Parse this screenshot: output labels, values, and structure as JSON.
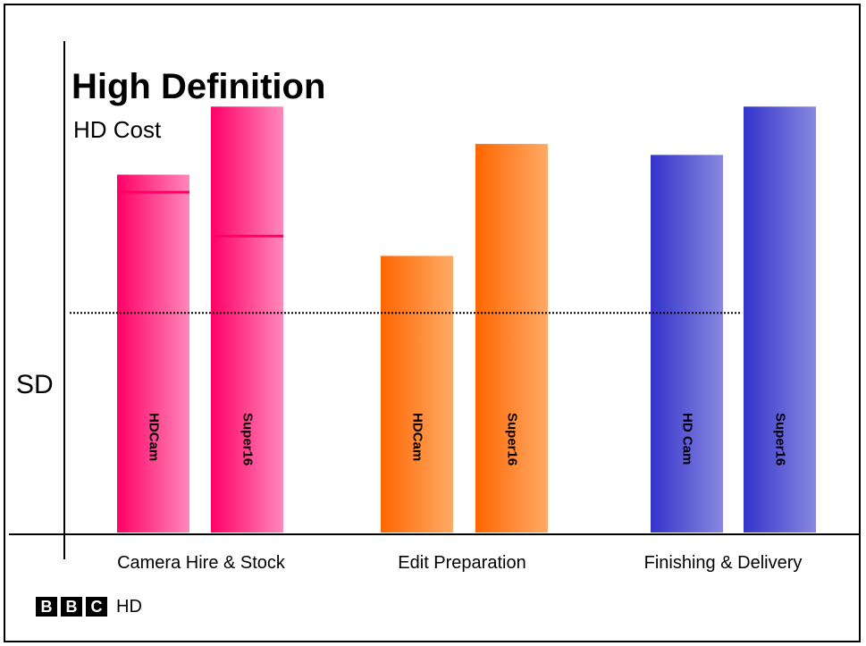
{
  "chart_data": {
    "type": "bar",
    "title": "High Definition",
    "subtitle": "HD Cost",
    "baseline_label": "SD",
    "baseline_value": 1.0,
    "categories": [
      "Camera Hire & Stock",
      "Edit Preparation",
      "Finishing & Delivery"
    ],
    "bars": [
      {
        "category": "Camera Hire & Stock",
        "label": "HDCam",
        "value": 1.63,
        "marker": 1.55,
        "color_start": "#ff0066",
        "color_end": "#ff88bb"
      },
      {
        "category": "Camera Hire & Stock",
        "label": "Super16",
        "value": 1.94,
        "marker": 1.35,
        "color_start": "#ff0066",
        "color_end": "#ff88bb"
      },
      {
        "category": "Edit Preparation",
        "label": "HDCam",
        "value": 1.26,
        "color_start": "#ff6600",
        "color_end": "#ffaa66"
      },
      {
        "category": "Edit Preparation",
        "label": "Super16",
        "value": 1.77,
        "color_start": "#ff6600",
        "color_end": "#ffaa66"
      },
      {
        "category": "Finishing & Delivery",
        "label": "HD Cam",
        "value": 1.72,
        "color_start": "#3333cc",
        "color_end": "#8888e0"
      },
      {
        "category": "Finishing & Delivery",
        "label": "Super16",
        "value": 1.94,
        "color_start": "#3333cc",
        "color_end": "#8888e0"
      }
    ],
    "ylim": [
      0,
      2.1
    ],
    "grid": false,
    "legend": "none"
  },
  "logo": {
    "letters": [
      "B",
      "B",
      "C"
    ],
    "suffix": "HD"
  }
}
